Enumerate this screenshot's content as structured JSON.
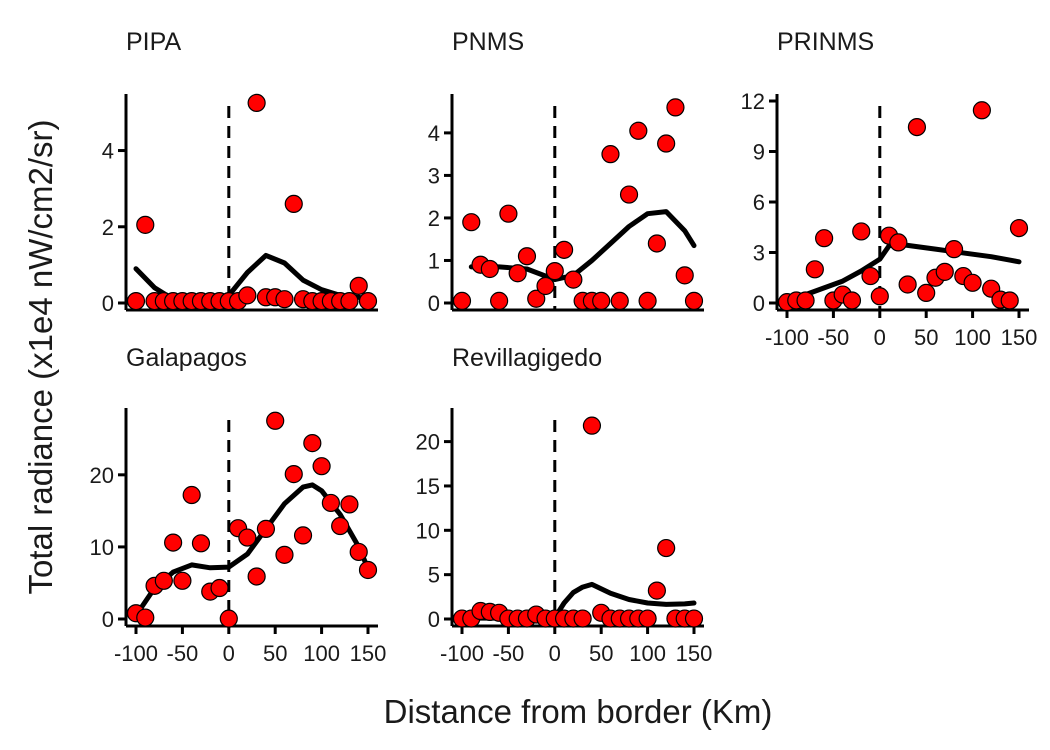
{
  "chart_data": {
    "type": "scatter",
    "xlabel": "Distance from border (Km)",
    "ylabel": "Total radiance (x1e4 nW/cm2/sr)",
    "colors": {
      "point_fill": "#ff0000",
      "point_stroke": "#000000",
      "line": "#000000",
      "border_line": "#000000"
    },
    "border_x": 0,
    "panels": [
      {
        "title": "PIPA",
        "show_x_axis": false,
        "xlim": [
          -100,
          150
        ],
        "ylim": [
          0,
          5.3
        ],
        "yticks": [
          0,
          2,
          4
        ],
        "ytick_labels": [
          "0",
          "2",
          "4"
        ],
        "x": [
          -100,
          -90,
          -80,
          -70,
          -60,
          -50,
          -40,
          -30,
          -20,
          -10,
          0,
          10,
          20,
          30,
          40,
          50,
          60,
          70,
          80,
          90,
          100,
          110,
          120,
          130,
          140,
          150
        ],
        "y": [
          0.05,
          2.05,
          0.05,
          0.05,
          0.05,
          0.05,
          0.05,
          0.05,
          0.05,
          0.05,
          0.05,
          0.05,
          0.2,
          5.25,
          0.15,
          0.15,
          0.1,
          2.6,
          0.1,
          0.05,
          0.05,
          0.05,
          0.05,
          0.05,
          0.45,
          0.05
        ],
        "smooth_x": [
          -100,
          -80,
          -60,
          -40,
          -20,
          0,
          20,
          40,
          60,
          80,
          100,
          120,
          140,
          150
        ],
        "smooth_y": [
          0.9,
          0.4,
          0.1,
          0.05,
          0.05,
          0.2,
          0.8,
          1.25,
          1.05,
          0.6,
          0.35,
          0.2,
          0.15,
          0.1
        ]
      },
      {
        "title": "PNMS",
        "show_x_axis": false,
        "xlim": [
          -100,
          150
        ],
        "ylim": [
          0,
          4.75
        ],
        "yticks": [
          0,
          1,
          2,
          3,
          4
        ],
        "ytick_labels": [
          "0",
          "1",
          "2",
          "3",
          "4"
        ],
        "x": [
          -100,
          -90,
          -80,
          -70,
          -60,
          -50,
          -40,
          -30,
          -20,
          -10,
          0,
          10,
          20,
          30,
          40,
          50,
          60,
          70,
          80,
          90,
          100,
          110,
          120,
          130,
          140,
          150
        ],
        "y": [
          0.05,
          1.9,
          0.9,
          0.8,
          0.05,
          2.1,
          0.7,
          1.1,
          0.1,
          0.4,
          0.75,
          1.25,
          0.55,
          0.05,
          0.05,
          0.05,
          3.5,
          0.05,
          2.55,
          4.05,
          0.05,
          1.4,
          3.75,
          4.6,
          0.65,
          0.05
        ],
        "smooth_x": [
          -90,
          -60,
          -30,
          0,
          20,
          40,
          60,
          80,
          100,
          120,
          140,
          150
        ],
        "smooth_y": [
          0.85,
          0.85,
          0.8,
          0.55,
          0.65,
          1.0,
          1.4,
          1.8,
          2.1,
          2.15,
          1.7,
          1.35
        ]
      },
      {
        "title": "PRINMS",
        "show_x_axis": true,
        "xlim": [
          -100,
          150
        ],
        "ylim": [
          0,
          12
        ],
        "yticks": [
          0,
          3,
          6,
          9,
          12
        ],
        "ytick_labels": [
          "0",
          "3",
          "6",
          "9",
          "12"
        ],
        "x": [
          -100,
          -90,
          -80,
          -70,
          -60,
          -50,
          -40,
          -30,
          -20,
          -10,
          0,
          10,
          20,
          30,
          40,
          50,
          60,
          70,
          80,
          90,
          100,
          110,
          120,
          130,
          140,
          150
        ],
        "y": [
          0.05,
          0.15,
          0.15,
          2.0,
          3.85,
          0.15,
          0.5,
          0.15,
          4.25,
          1.6,
          0.4,
          4.0,
          3.6,
          1.1,
          10.45,
          0.6,
          1.5,
          1.85,
          3.2,
          1.6,
          1.2,
          11.45,
          0.85,
          0.2,
          0.15,
          4.45
        ],
        "smooth_x": [
          -100,
          -80,
          -60,
          -40,
          -20,
          0,
          10,
          20,
          40,
          60,
          80,
          100,
          120,
          140,
          150
        ],
        "smooth_y": [
          0.1,
          0.5,
          0.9,
          1.3,
          1.9,
          2.6,
          3.4,
          3.5,
          3.35,
          3.2,
          3.05,
          2.9,
          2.75,
          2.55,
          2.45
        ],
        "xticks": [
          -100,
          -50,
          0,
          50,
          100,
          150
        ],
        "xtick_labels": [
          "-100",
          "-50",
          "0",
          "50",
          "100",
          "150"
        ]
      },
      {
        "title": "Galapagos",
        "show_x_axis": true,
        "xlim": [
          -100,
          150
        ],
        "ylim": [
          0,
          28.3
        ],
        "yticks": [
          0,
          10,
          20
        ],
        "ytick_labels": [
          "0",
          "10",
          "20"
        ],
        "x": [
          -100,
          -90,
          -80,
          -70,
          -60,
          -50,
          -40,
          -30,
          -20,
          -10,
          0,
          10,
          20,
          30,
          40,
          50,
          60,
          70,
          80,
          90,
          100,
          110,
          120,
          130,
          140,
          150
        ],
        "y": [
          0.8,
          0.2,
          4.6,
          5.3,
          10.6,
          5.3,
          17.2,
          10.5,
          3.8,
          4.3,
          0.05,
          12.6,
          11.3,
          5.9,
          12.5,
          27.5,
          8.9,
          20.1,
          11.6,
          24.4,
          21.2,
          16.1,
          12.9,
          15.9,
          9.3,
          6.8
        ],
        "smooth_x": [
          -100,
          -80,
          -60,
          -40,
          -20,
          0,
          20,
          40,
          60,
          80,
          90,
          100,
          120,
          140,
          150
        ],
        "smooth_y": [
          0.5,
          4.3,
          6.5,
          7.5,
          7.1,
          7.2,
          9.0,
          12.5,
          16.0,
          18.3,
          18.6,
          17.8,
          14.5,
          10.0,
          7.0
        ]
      },
      {
        "title": "Revillagigedo",
        "show_x_axis": true,
        "xlim": [
          -100,
          150
        ],
        "ylim": [
          0,
          23
        ],
        "yticks": [
          0,
          5,
          10,
          15,
          20
        ],
        "ytick_labels": [
          "0",
          "5",
          "10",
          "15",
          "20"
        ],
        "x": [
          -100,
          -90,
          -80,
          -70,
          -60,
          -50,
          -40,
          -30,
          -20,
          -10,
          0,
          10,
          20,
          30,
          40,
          50,
          60,
          70,
          80,
          90,
          100,
          110,
          120,
          130,
          140,
          150
        ],
        "y": [
          0.05,
          0.05,
          0.9,
          0.8,
          0.7,
          0.05,
          0.05,
          0.05,
          0.5,
          0.05,
          0.05,
          0.05,
          0.05,
          0.05,
          21.8,
          0.7,
          0.05,
          0.05,
          0.05,
          0.05,
          0.05,
          3.2,
          8.0,
          0.05,
          0.05,
          0.05
        ],
        "smooth_x": [
          -100,
          -60,
          -20,
          0,
          10,
          20,
          30,
          40,
          60,
          80,
          100,
          120,
          140,
          150
        ],
        "smooth_y": [
          0.1,
          0.1,
          0.1,
          0.15,
          1.8,
          3.0,
          3.6,
          3.9,
          2.9,
          2.2,
          1.8,
          1.65,
          1.7,
          1.8
        ]
      }
    ]
  }
}
